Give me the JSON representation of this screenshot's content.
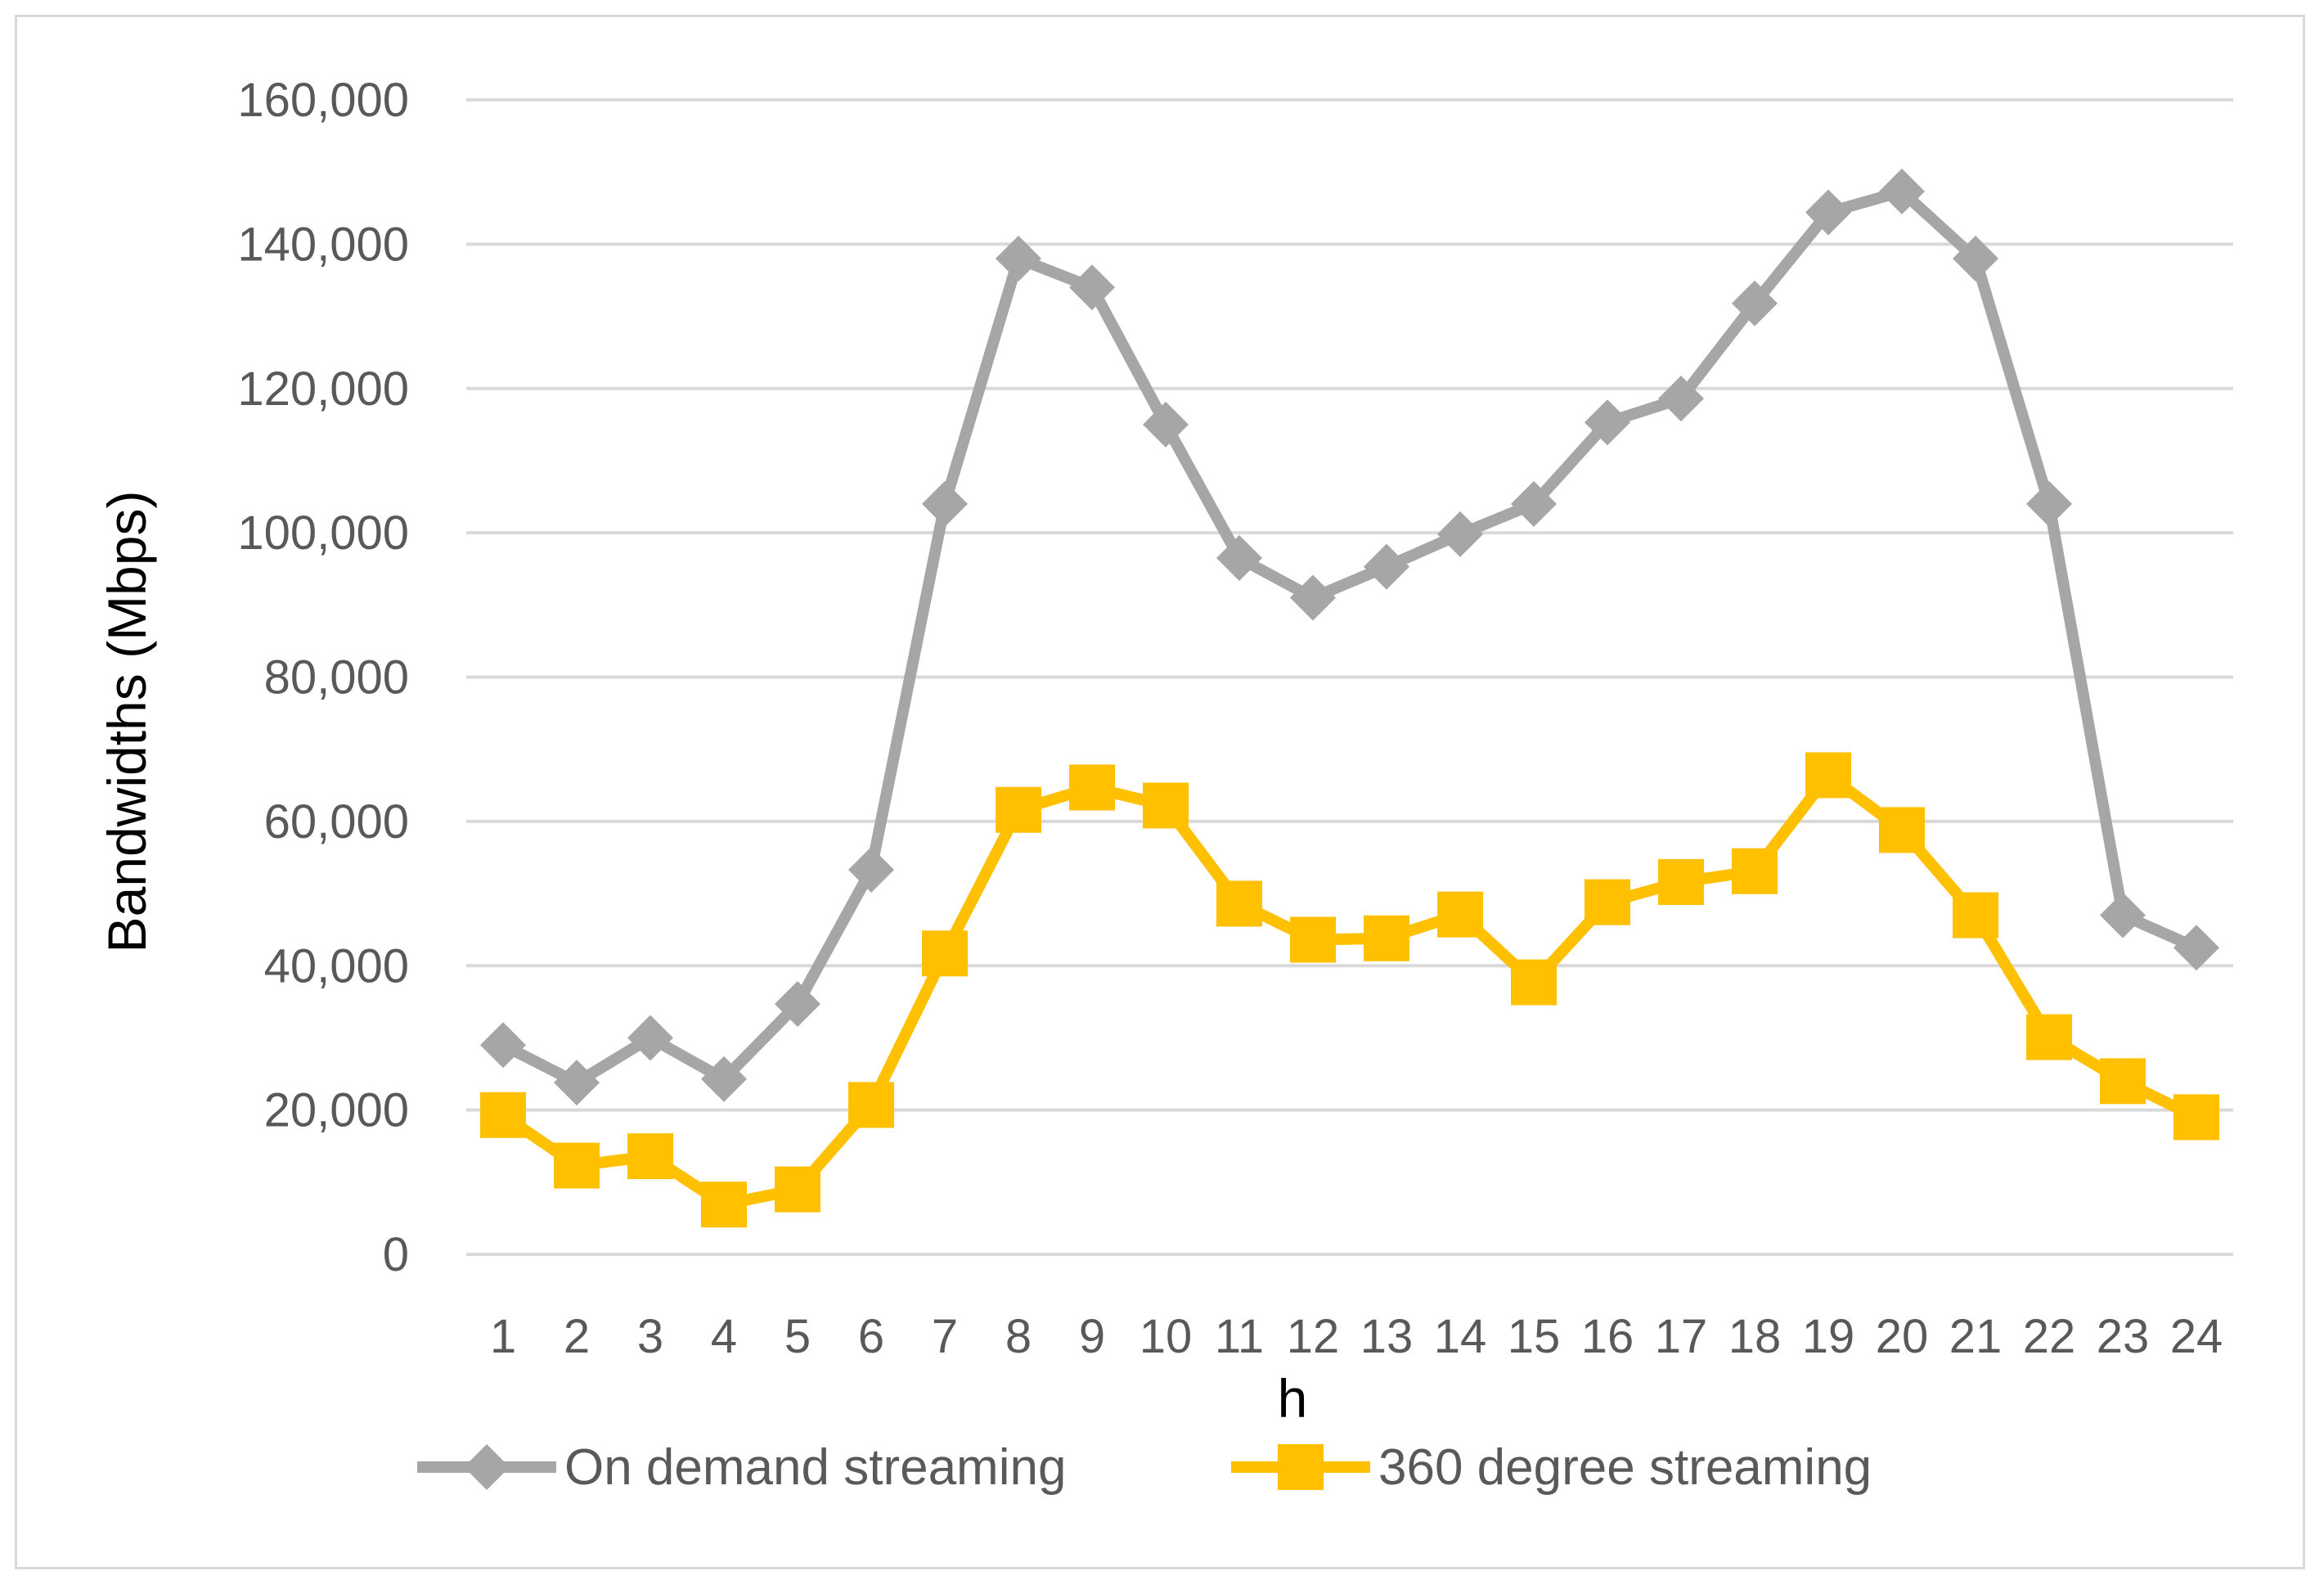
{
  "chart_data": {
    "type": "line",
    "title": "",
    "xlabel": "h",
    "ylabel": "Bandwidths (Mbps)",
    "ylim": [
      0,
      160000
    ],
    "yticks": [
      0,
      20000,
      40000,
      60000,
      80000,
      100000,
      120000,
      140000,
      160000
    ],
    "ytick_labels": [
      "0",
      "20,000",
      "40,000",
      "60,000",
      "80,000",
      "100,000",
      "120,000",
      "140,000",
      "160,000"
    ],
    "categories": [
      "1",
      "2",
      "3",
      "4",
      "5",
      "6",
      "7",
      "8",
      "9",
      "10",
      "11",
      "12",
      "13",
      "14",
      "15",
      "16",
      "17",
      "18",
      "19",
      "20",
      "21",
      "22",
      "23",
      "24"
    ],
    "grid": true,
    "legend_position": "bottom",
    "series": [
      {
        "name": "On demand streaming",
        "color": "#a6a6a6",
        "marker": "diamond",
        "values": [
          29000,
          23800,
          30000,
          24300,
          34700,
          53300,
          104000,
          138000,
          134000,
          115000,
          96500,
          91000,
          95300,
          99800,
          104000,
          115300,
          118600,
          131800,
          144400,
          147300,
          138000,
          104000,
          47000,
          42500
        ]
      },
      {
        "name": "360 degree streaming",
        "color": "#ffc000",
        "marker": "square",
        "values": [
          19300,
          12300,
          13600,
          6900,
          9000,
          20700,
          41700,
          61600,
          64700,
          62200,
          48600,
          43600,
          43800,
          47100,
          37700,
          48800,
          51600,
          53100,
          66400,
          58800,
          47000,
          30100,
          24000,
          19000
        ]
      }
    ]
  }
}
